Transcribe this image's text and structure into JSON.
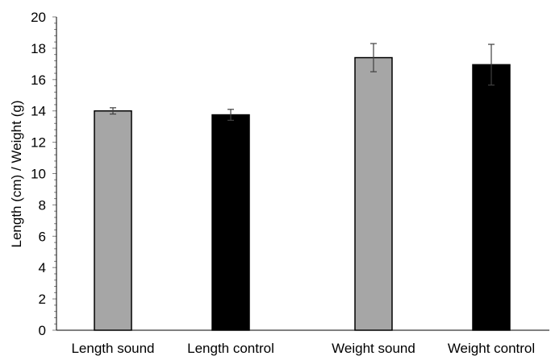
{
  "chart_data": {
    "type": "bar",
    "title": "",
    "xlabel": "",
    "ylabel": "Length (cm) / Weight (g)",
    "ylim": [
      0,
      20
    ],
    "ytick_step": 2,
    "minor_ticks_per_major": 5,
    "grid": false,
    "categories": [
      "Length sound",
      "Length control",
      "Weight sound",
      "Weight control"
    ],
    "values": [
      14.0,
      13.75,
      17.4,
      16.95
    ],
    "error": [
      0.2,
      0.35,
      0.9,
      1.3
    ],
    "bar_colors": [
      "#a6a6a6",
      "#000000",
      "#a6a6a6",
      "#000000"
    ],
    "bar_edge_color": "#000000",
    "errorbar_color": "#404040"
  }
}
